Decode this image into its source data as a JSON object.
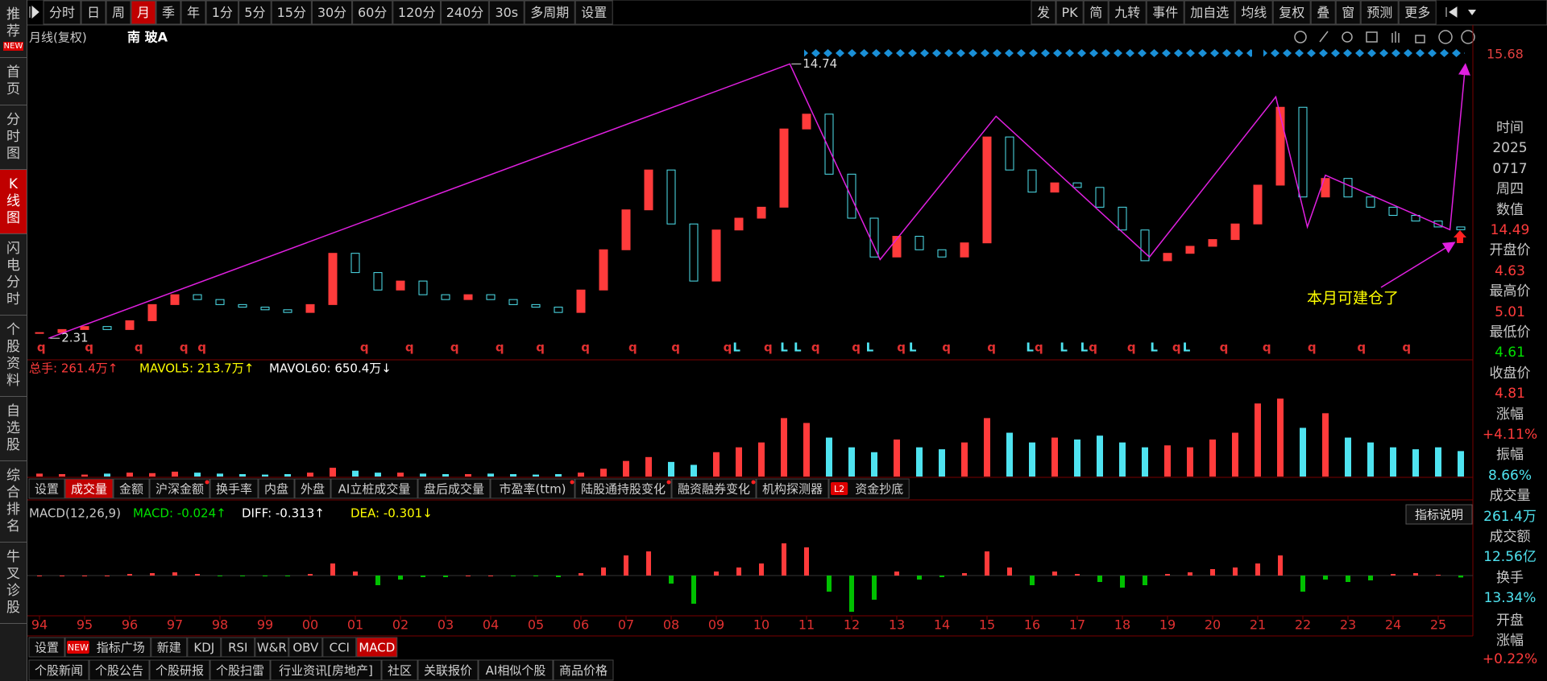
{
  "toolbar": {
    "left": [
      {
        "label": "分时"
      },
      {
        "label": "日"
      },
      {
        "label": "周"
      },
      {
        "label": "月",
        "active": true
      },
      {
        "label": "季"
      },
      {
        "label": "年"
      },
      {
        "label": "1分"
      },
      {
        "label": "5分"
      },
      {
        "label": "15分"
      },
      {
        "label": "30分"
      },
      {
        "label": "60分"
      },
      {
        "label": "120分"
      },
      {
        "label": "240分"
      },
      {
        "label": "30s"
      },
      {
        "label": "多周期"
      },
      {
        "label": "设置"
      }
    ],
    "right": [
      {
        "label": "发"
      },
      {
        "label": "PK"
      },
      {
        "label": "简"
      },
      {
        "label": "九转"
      },
      {
        "label": "事件"
      },
      {
        "label": "加自选"
      },
      {
        "label": "均线"
      },
      {
        "label": "复权"
      },
      {
        "label": "叠"
      },
      {
        "label": "窗"
      },
      {
        "label": "预测"
      },
      {
        "label": "更多"
      }
    ]
  },
  "sidebar": [
    {
      "label": "推荐",
      "badge": "NEW"
    },
    {
      "label": "首页"
    },
    {
      "label": "分时图"
    },
    {
      "label": "K线图",
      "active": true
    },
    {
      "label": "闪电分时"
    },
    {
      "label": "个股资料"
    },
    {
      "label": "自选股"
    },
    {
      "label": "综合排名"
    },
    {
      "label": "牛叉诊股"
    }
  ],
  "header": {
    "period": "月线(复权)",
    "stock": "南 玻A"
  },
  "chart_data": {
    "type": "candlestick",
    "x": [
      1994,
      1994.5,
      1995,
      1995.5,
      1996,
      1996.5,
      1997,
      1997.5,
      1998,
      1998.5,
      1999,
      1999.5,
      2000,
      2000.5,
      2001,
      2001.5,
      2002,
      2002.5,
      2003,
      2003.5,
      2004,
      2004.5,
      2005,
      2005.5,
      2006,
      2006.5,
      2007,
      2007.5,
      2008,
      2008.5,
      2009,
      2009.5,
      2010,
      2010.5,
      2011,
      2011.5,
      2012,
      2012.5,
      2013,
      2013.5,
      2014,
      2014.5,
      2015,
      2015.5,
      2016,
      2016.5,
      2017,
      2017.5,
      2018,
      2018.5,
      2019,
      2019.5,
      2020,
      2020.5,
      2021,
      2021.5,
      2022,
      2022.5,
      2023,
      2023.5,
      2024,
      2024.5,
      2025,
      2025.5
    ],
    "values": [
      2.4,
      2.45,
      2.5,
      2.45,
      2.6,
      2.9,
      3.1,
      3.0,
      2.9,
      2.85,
      2.8,
      2.75,
      2.9,
      4.1,
      3.6,
      3.2,
      3.4,
      3.1,
      3.0,
      3.1,
      3.0,
      2.9,
      2.85,
      2.75,
      3.2,
      4.2,
      5.5,
      7.2,
      5.0,
      3.4,
      4.8,
      5.2,
      5.6,
      9.5,
      10.5,
      7.0,
      5.2,
      4.0,
      4.6,
      4.2,
      4.0,
      4.4,
      9.0,
      7.2,
      6.2,
      6.6,
      6.4,
      5.6,
      4.8,
      3.9,
      4.1,
      4.3,
      4.5,
      5.0,
      6.5,
      11.0,
      6.0,
      6.8,
      6.0,
      5.6,
      5.3,
      5.1,
      4.9,
      4.81
    ],
    "up_color": "#ff3b3b",
    "down_color": "#4fe3f0",
    "log_scale": true,
    "ylim": [
      2.19,
      17.3
    ],
    "xlim": [
      1993.75,
      2025.75
    ],
    "xticks": [
      {
        "value": 1994,
        "label": "94"
      },
      {
        "value": 1995,
        "label": "95"
      },
      {
        "value": 1996,
        "label": "96"
      },
      {
        "value": 1997,
        "label": "97"
      },
      {
        "value": 1998,
        "label": "98"
      },
      {
        "value": 1999,
        "label": "99"
      },
      {
        "value": 2000,
        "label": "00"
      },
      {
        "value": 2001,
        "label": "01"
      },
      {
        "value": 2002,
        "label": "02"
      },
      {
        "value": 2003,
        "label": "03"
      },
      {
        "value": 2004,
        "label": "04"
      },
      {
        "value": 2005,
        "label": "05"
      },
      {
        "value": 2006,
        "label": "06"
      },
      {
        "value": 2007,
        "label": "07"
      },
      {
        "value": 2008,
        "label": "08"
      },
      {
        "value": 2009,
        "label": "09"
      },
      {
        "value": 2010,
        "label": "10"
      },
      {
        "value": 2011,
        "label": "11"
      },
      {
        "value": 2012,
        "label": "12"
      },
      {
        "value": 2013,
        "label": "13"
      },
      {
        "value": 2014,
        "label": "14"
      },
      {
        "value": 2015,
        "label": "15"
      },
      {
        "value": 2016,
        "label": "16"
      },
      {
        "value": 2017,
        "label": "17"
      },
      {
        "value": 2018,
        "label": "18"
      },
      {
        "value": 2019,
        "label": "19"
      },
      {
        "value": 2020,
        "label": "20"
      },
      {
        "value": 2021,
        "label": "21"
      },
      {
        "value": 2022,
        "label": "22"
      },
      {
        "value": 2023,
        "label": "23"
      },
      {
        "value": 2024,
        "label": "24"
      },
      {
        "value": 2025,
        "label": "25"
      }
    ],
    "max_label": {
      "x": 2010.63,
      "value": 14.74
    },
    "min_label": {
      "x": 1994.2,
      "value": 2.31
    },
    "right_axis_label": 15.68,
    "trendline": {
      "color": "#e020e0",
      "x": [
        1994.2,
        2010.63,
        2012.63,
        2015.2,
        2018.6,
        2021.4,
        2022.1,
        2022.5,
        2025.26,
        2025.6
      ],
      "values": [
        2.31,
        14.74,
        3.93,
        10.35,
        4.0,
        11.8,
        4.9,
        6.95,
        4.81,
        14.6
      ]
    },
    "annotation": "本月可建仓了",
    "events": [
      {
        "x": 1994.04,
        "label": "q"
      },
      {
        "x": 1995.1,
        "label": "q"
      },
      {
        "x": 1996.2,
        "label": "q"
      },
      {
        "x": 1997.2,
        "label": "q"
      },
      {
        "x": 1997.6,
        "label": "q"
      },
      {
        "x": 2001.2,
        "label": "q"
      },
      {
        "x": 2002.2,
        "label": "q"
      },
      {
        "x": 2003.2,
        "label": "q"
      },
      {
        "x": 2004.2,
        "label": "q"
      },
      {
        "x": 2005.1,
        "label": "q"
      },
      {
        "x": 2006.1,
        "label": "q"
      },
      {
        "x": 2007.15,
        "label": "q"
      },
      {
        "x": 2008.1,
        "label": "q"
      },
      {
        "x": 2009.25,
        "label": "q"
      },
      {
        "x": 2009.45,
        "label": "L"
      },
      {
        "x": 2010.15,
        "label": "q"
      },
      {
        "x": 2010.5,
        "label": "L"
      },
      {
        "x": 2010.8,
        "label": "L"
      },
      {
        "x": 2011.2,
        "label": "q"
      },
      {
        "x": 2012.1,
        "label": "q"
      },
      {
        "x": 2012.4,
        "label": "L"
      },
      {
        "x": 2013.1,
        "label": "q"
      },
      {
        "x": 2013.35,
        "label": "L"
      },
      {
        "x": 2014.1,
        "label": "q"
      },
      {
        "x": 2015.1,
        "label": "q"
      },
      {
        "x": 2015.95,
        "label": "L"
      },
      {
        "x": 2016.15,
        "label": "q"
      },
      {
        "x": 2016.7,
        "label": "L"
      },
      {
        "x": 2017.15,
        "label": "L"
      },
      {
        "x": 2017.35,
        "label": "q"
      },
      {
        "x": 2018.2,
        "label": "q"
      },
      {
        "x": 2018.7,
        "label": "L"
      },
      {
        "x": 2019.2,
        "label": "q"
      },
      {
        "x": 2019.42,
        "label": "L"
      },
      {
        "x": 2020.25,
        "label": "q"
      },
      {
        "x": 2021.2,
        "label": "q"
      },
      {
        "x": 2022.2,
        "label": "q"
      },
      {
        "x": 2023.3,
        "label": "q"
      },
      {
        "x": 2024.3,
        "label": "q"
      }
    ],
    "volume": {
      "legend": [
        {
          "text": "总手: 261.4万↑",
          "color": "#ff3b3b"
        },
        {
          "text": "MAVOL5: 213.7万↑",
          "color": "#ffff00"
        },
        {
          "text": "MAVOL60: 650.4万↓",
          "color": "#ffffff"
        }
      ],
      "values": [
        30,
        25,
        20,
        30,
        40,
        35,
        50,
        40,
        30,
        25,
        20,
        25,
        40,
        90,
        60,
        40,
        40,
        30,
        25,
        25,
        30,
        25,
        20,
        25,
        40,
        80,
        160,
        200,
        150,
        120,
        250,
        300,
        350,
        600,
        550,
        400,
        300,
        250,
        380,
        300,
        280,
        350,
        600,
        450,
        350,
        400,
        380,
        420,
        350,
        300,
        320,
        300,
        380,
        450,
        750,
        800,
        500,
        650,
        400,
        350,
        300,
        280,
        300,
        261.4
      ],
      "ylim": [
        0,
        1000
      ]
    },
    "macd": {
      "legend": [
        {
          "text": "MACD(12,26,9)",
          "color": "#c8c8c8"
        },
        {
          "text": "MACD: -0.024↑",
          "color": "#00e000"
        },
        {
          "text": "DIFF: -0.313↑",
          "color": "#ffffff"
        },
        {
          "text": "DEA: -0.301↓",
          "color": "#ffff00"
        }
      ],
      "values": [
        0,
        0,
        0,
        0,
        0.02,
        0.03,
        0.04,
        0.02,
        -0.01,
        -0.01,
        -0.01,
        -0.01,
        0.02,
        0.15,
        0.05,
        -0.12,
        -0.05,
        -0.02,
        -0.02,
        0,
        0,
        -0.01,
        -0.01,
        -0.02,
        0.03,
        0.1,
        0.25,
        0.3,
        -0.1,
        -0.35,
        0.05,
        0.1,
        0.15,
        0.4,
        0.35,
        -0.2,
        -0.45,
        -0.3,
        0.05,
        -0.05,
        -0.02,
        0.03,
        0.3,
        0.1,
        -0.12,
        0.05,
        0.02,
        -0.08,
        -0.15,
        -0.12,
        0.02,
        0.04,
        0.08,
        0.1,
        0.15,
        0.25,
        -0.2,
        -0.05,
        -0.08,
        -0.06,
        0.02,
        0.03,
        0.01,
        -0.024
      ],
      "ylim": [
        -0.6,
        0.6
      ],
      "pos_color": "#ff3b3b",
      "neg_color": "#00c000",
      "help": "指标说明"
    }
  },
  "volume_tabs": [
    {
      "label": "设置"
    },
    {
      "label": "成交量",
      "active": true
    },
    {
      "label": "金额"
    },
    {
      "label": "沪深金额",
      "dot": true
    },
    {
      "label": "换手率"
    },
    {
      "label": "内盘"
    },
    {
      "label": "外盘"
    },
    {
      "label": "AI立桩成交量"
    },
    {
      "label": "盘后成交量"
    },
    {
      "label": "市盈率(ttm)",
      "dot": true
    },
    {
      "label": "陆股通持股变化",
      "dot": true
    },
    {
      "label": "融资融券变化",
      "dot": true
    },
    {
      "label": "机构探测器"
    },
    {
      "label": "资金抄底",
      "badge": "L2"
    }
  ],
  "indicator_tabs": [
    {
      "label": "设置"
    },
    {
      "label": "指标广场",
      "badge": "NEW"
    },
    {
      "label": "新建"
    },
    {
      "label": "KDJ"
    },
    {
      "label": "RSI"
    },
    {
      "label": "W&R"
    },
    {
      "label": "OBV"
    },
    {
      "label": "CCI"
    },
    {
      "label": "MACD",
      "active": true
    }
  ],
  "bottom_nav": [
    {
      "label": "个股新闻"
    },
    {
      "label": "个股公告"
    },
    {
      "label": "个股研报"
    },
    {
      "label": "个股扫雷"
    },
    {
      "label": "行业资讯[房地产]"
    },
    {
      "label": "社区"
    },
    {
      "label": "关联报价"
    },
    {
      "label": "AI相似个股"
    },
    {
      "label": "商品价格"
    }
  ],
  "info_panel": {
    "time_label": "时间",
    "time_lines": [
      "2025",
      "0717",
      "周四"
    ],
    "fields": [
      {
        "label": "数值",
        "value": 14.49,
        "color": "#ff3b3b"
      },
      {
        "label": "开盘价",
        "value": 4.63,
        "color": "#ff3b3b"
      },
      {
        "label": "最高价",
        "value": 5.01,
        "color": "#ff3b3b"
      },
      {
        "label": "最低价",
        "value": 4.61,
        "color": "#00e000"
      },
      {
        "label": "收盘价",
        "value": 4.81,
        "color": "#ff3b3b"
      },
      {
        "label": "涨幅",
        "value": "+4.11%",
        "color": "#ff3b3b"
      },
      {
        "label": "振幅",
        "value": "8.66%",
        "color": "#4fe3f0"
      },
      {
        "label": "成交量",
        "value": "261.4万",
        "color": "#4fe3f0"
      },
      {
        "label": "成交额",
        "value": "12.56亿",
        "color": "#4fe3f0"
      },
      {
        "label": "换手",
        "value": "13.34%",
        "color": "#4fe3f0"
      },
      {
        "label": "开盘涨幅",
        "value": "+0.22%",
        "color": "#ff3b3b",
        "wrap": true
      }
    ]
  }
}
